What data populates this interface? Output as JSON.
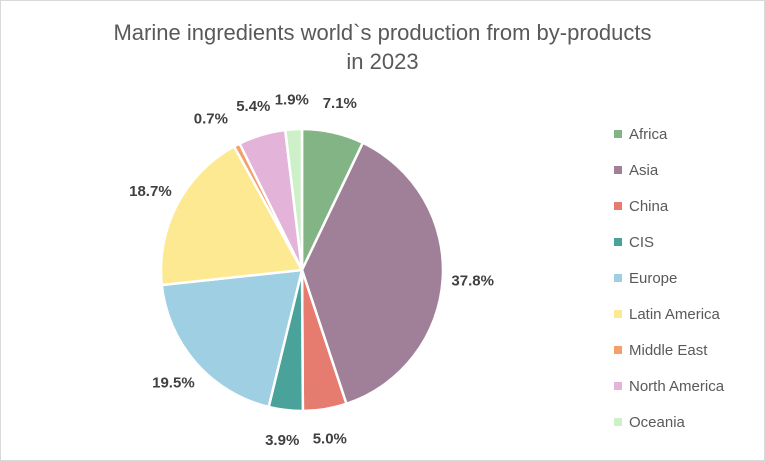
{
  "chart_data": {
    "type": "pie",
    "title_lines": [
      "Marine ingredients world`s production from by-products",
      "in 2023"
    ],
    "legend_position": "right",
    "categories": [
      "Africa",
      "Asia",
      "China",
      "CIS",
      "Europe",
      "Latin America",
      "Middle East",
      "North America",
      "Oceania"
    ],
    "values": [
      7.1,
      37.8,
      5.0,
      3.9,
      19.5,
      18.7,
      0.7,
      5.4,
      1.9
    ],
    "data_labels": [
      "7.1%",
      "37.8%",
      "5.0%",
      "3.9%",
      "19.5%",
      "18.7%",
      "0.7%",
      "5.4%",
      "1.9%"
    ],
    "colors": [
      "#82b486",
      "#a08098",
      "#e67b70",
      "#4aa39b",
      "#9ecfe3",
      "#fde992",
      "#f3a06a",
      "#e3b3da",
      "#cdf0c8"
    ]
  }
}
